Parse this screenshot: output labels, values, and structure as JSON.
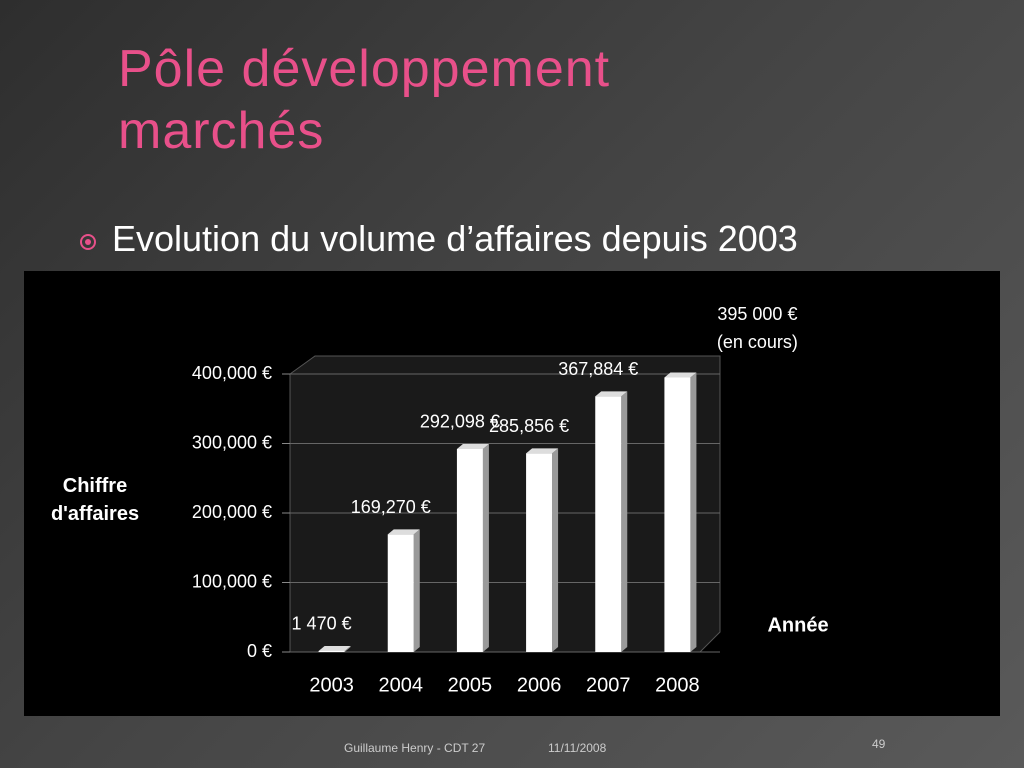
{
  "title": "Pôle développement marchés",
  "bullet": "Evolution du volume d’affaires depuis 2003",
  "footer": {
    "author": "Guillaume Henry - CDT 27",
    "date": "11/11/2008",
    "page": "49"
  },
  "chart_data": {
    "type": "bar",
    "y_label": "Chiffre d'affaires",
    "x_label": "Année",
    "categories": [
      "2003",
      "2004",
      "2005",
      "2006",
      "2007",
      "2008"
    ],
    "values": [
      1470,
      169270,
      292098,
      285856,
      367884,
      395000
    ],
    "value_labels": [
      "1 470 €",
      "169,270 €",
      "292,098 €",
      "285,856 €",
      "367,884 €",
      "395 000 €"
    ],
    "annotation": "(en cours)",
    "color": "#ffffff",
    "ylim": [
      0,
      400000
    ],
    "yticks": [
      {
        "value": 0,
        "label": "0 €"
      },
      {
        "value": 100000,
        "label": "100,000 €"
      },
      {
        "value": 200000,
        "label": "200,000 €"
      },
      {
        "value": 300000,
        "label": "300,000 €"
      },
      {
        "value": 400000,
        "label": "400,000 €"
      }
    ],
    "grid": true
  }
}
